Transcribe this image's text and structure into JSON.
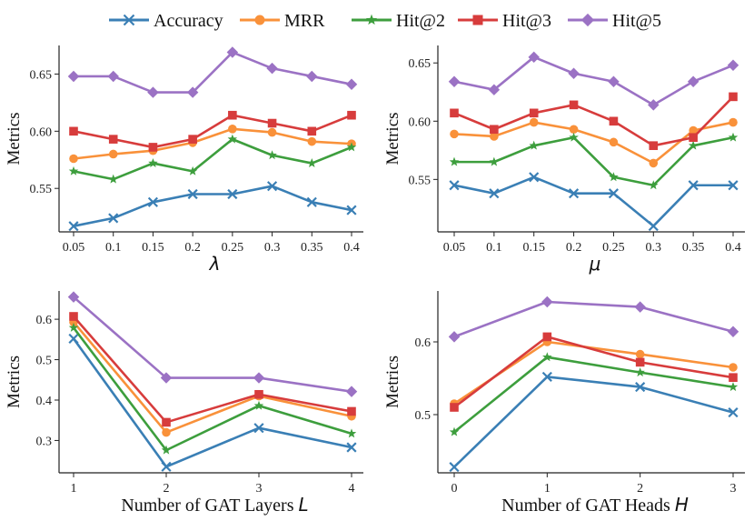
{
  "chart_data": [
    {
      "type": "line",
      "x_type": "categorical",
      "categories": [
        "0.05",
        "0.1",
        "0.15",
        "0.2",
        "0.25",
        "0.3",
        "0.35",
        "0.4"
      ],
      "xlabel": "",
      "xlabel_symbol": "λ",
      "ylabel": "Metrics",
      "ylim": [
        0.512,
        0.675
      ],
      "yticks": [
        0.55,
        0.6,
        0.65
      ],
      "ytick_labels": [
        "0.55",
        "0.60",
        "0.65"
      ],
      "grid": false,
      "series": [
        {
          "name": "Accuracy",
          "values": [
            0.517,
            0.524,
            0.538,
            0.545,
            0.545,
            0.552,
            0.538,
            0.531
          ]
        },
        {
          "name": "MRR",
          "values": [
            0.576,
            0.58,
            0.583,
            0.59,
            0.602,
            0.599,
            0.591,
            0.589
          ]
        },
        {
          "name": "Hit@2",
          "values": [
            0.565,
            0.558,
            0.572,
            0.565,
            0.593,
            0.579,
            0.572,
            0.586
          ]
        },
        {
          "name": "Hit@3",
          "values": [
            0.6,
            0.593,
            0.586,
            0.593,
            0.614,
            0.607,
            0.6,
            0.614
          ]
        },
        {
          "name": "Hit@5",
          "values": [
            0.648,
            0.648,
            0.634,
            0.634,
            0.669,
            0.655,
            0.648,
            0.641
          ]
        }
      ]
    },
    {
      "type": "line",
      "x_type": "categorical",
      "categories": [
        "0.05",
        "0.1",
        "0.15",
        "0.2",
        "0.25",
        "0.3",
        "0.35",
        "0.4"
      ],
      "xlabel": "",
      "xlabel_symbol": "μ",
      "ylabel": "Metrics",
      "ylim": [
        0.505,
        0.665
      ],
      "yticks": [
        0.55,
        0.6,
        0.65
      ],
      "ytick_labels": [
        "0.55",
        "0.60",
        "0.65"
      ],
      "grid": false,
      "series": [
        {
          "name": "Accuracy",
          "values": [
            0.545,
            0.538,
            0.552,
            0.538,
            0.538,
            0.51,
            0.545,
            0.545
          ]
        },
        {
          "name": "MRR",
          "values": [
            0.589,
            0.587,
            0.599,
            0.593,
            0.582,
            0.564,
            0.592,
            0.599
          ]
        },
        {
          "name": "Hit@2",
          "values": [
            0.565,
            0.565,
            0.579,
            0.586,
            0.552,
            0.545,
            0.579,
            0.586
          ]
        },
        {
          "name": "Hit@3",
          "values": [
            0.607,
            0.593,
            0.607,
            0.614,
            0.6,
            0.579,
            0.586,
            0.621
          ]
        },
        {
          "name": "Hit@5",
          "values": [
            0.634,
            0.627,
            0.655,
            0.641,
            0.634,
            0.614,
            0.634,
            0.648
          ]
        }
      ]
    },
    {
      "type": "line",
      "x_type": "categorical",
      "categories": [
        "1",
        "2",
        "3",
        "4"
      ],
      "xlabel": "Number of GAT Layers",
      "xlabel_symbol": "L",
      "ylabel": "Metrics",
      "ylim": [
        0.22,
        0.67
      ],
      "yticks": [
        0.3,
        0.4,
        0.5,
        0.6
      ],
      "ytick_labels": [
        "0.3",
        "0.4",
        "0.5",
        "0.6"
      ],
      "grid": false,
      "series": [
        {
          "name": "Accuracy",
          "values": [
            0.552,
            0.235,
            0.331,
            0.283
          ]
        },
        {
          "name": "MRR",
          "values": [
            0.593,
            0.32,
            0.41,
            0.36
          ]
        },
        {
          "name": "Hit@2",
          "values": [
            0.579,
            0.276,
            0.386,
            0.317
          ]
        },
        {
          "name": "Hit@3",
          "values": [
            0.607,
            0.345,
            0.414,
            0.372
          ]
        },
        {
          "name": "Hit@5",
          "values": [
            0.655,
            0.455,
            0.455,
            0.421
          ]
        }
      ]
    },
    {
      "type": "line",
      "x_type": "categorical",
      "categories": [
        "0",
        "1",
        "2",
        "3"
      ],
      "xlabel": "Number of GAT Heads",
      "xlabel_symbol": "H",
      "ylabel": "Metrics",
      "ylim": [
        0.42,
        0.67
      ],
      "yticks": [
        0.5,
        0.6
      ],
      "ytick_labels": [
        "0.5",
        "0.6"
      ],
      "grid": false,
      "series": [
        {
          "name": "Accuracy",
          "values": [
            0.428,
            0.552,
            0.538,
            0.503
          ]
        },
        {
          "name": "MRR",
          "values": [
            0.515,
            0.6,
            0.583,
            0.565
          ]
        },
        {
          "name": "Hit@2",
          "values": [
            0.476,
            0.579,
            0.558,
            0.538
          ]
        },
        {
          "name": "Hit@3",
          "values": [
            0.51,
            0.607,
            0.572,
            0.551
          ]
        },
        {
          "name": "Hit@5",
          "values": [
            0.607,
            0.655,
            0.648,
            0.614
          ]
        }
      ]
    }
  ],
  "legend": {
    "position": "top-center",
    "items": [
      {
        "name": "Accuracy",
        "color": "#3a7fb5",
        "marker": "x-icon"
      },
      {
        "name": "MRR",
        "color": "#f9913a",
        "marker": "circle-icon"
      },
      {
        "name": "Hit@2",
        "color": "#3d9e3d",
        "marker": "star-icon"
      },
      {
        "name": "Hit@3",
        "color": "#d73c3c",
        "marker": "square-icon"
      },
      {
        "name": "Hit@5",
        "color": "#9b72c4",
        "marker": "diamond-icon"
      }
    ]
  }
}
